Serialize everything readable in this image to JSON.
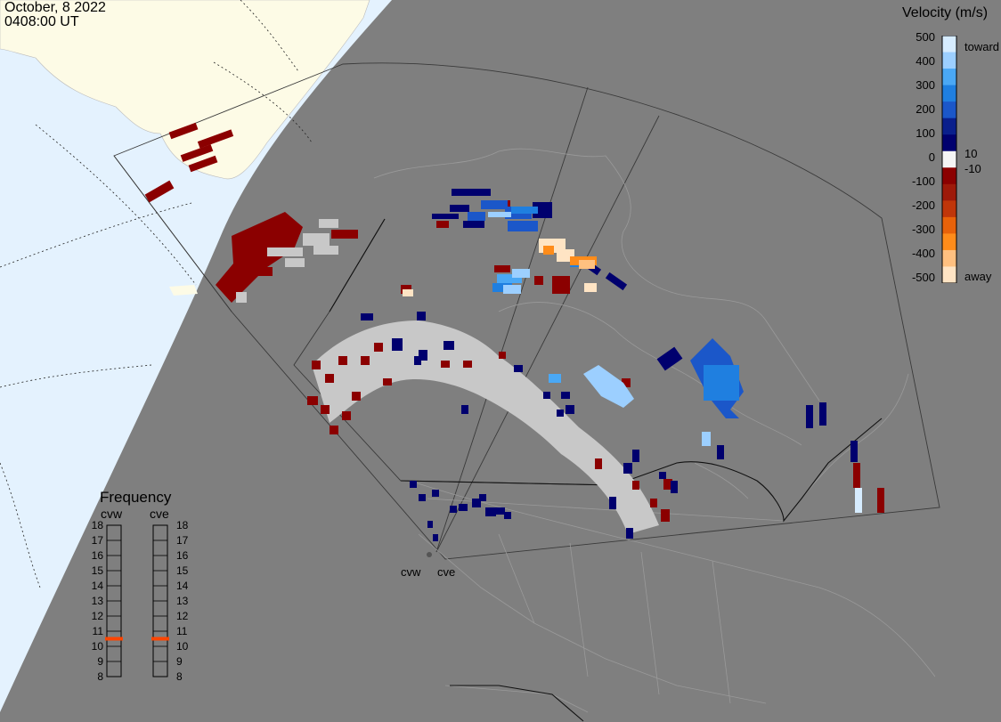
{
  "header": {
    "date": "October, 8 2022",
    "time": "0408:00 UT"
  },
  "colorbar": {
    "title": "Velocity (m/s)",
    "ticks": [
      "500",
      "400",
      "300",
      "200",
      "100",
      "0",
      "-100",
      "-200",
      "-300",
      "-400",
      "-500"
    ],
    "tick_values": [
      500,
      400,
      300,
      200,
      100,
      0,
      -100,
      -200,
      -300,
      -400,
      -500
    ],
    "inner_labels": [
      "10",
      "-10"
    ],
    "end_labels": {
      "toward": "toward",
      "away": "away"
    },
    "colors": [
      "#d6ecff",
      "#9ccfff",
      "#4aa8f5",
      "#1f7fe0",
      "#1b57c9",
      "#0a1f8c",
      "#00006e",
      "#f5f5f5",
      "#8b0000",
      "#9e1a0a",
      "#c0360a",
      "#e8620a",
      "#ff8c1a",
      "#ffc080",
      "#ffe4c4"
    ]
  },
  "frequency": {
    "title": "Frequency",
    "radars": [
      {
        "name": "cvw",
        "selected_mhz": 10.5
      },
      {
        "name": "cve",
        "selected_mhz": 10.5
      }
    ],
    "scale": [
      "18",
      "17",
      "16",
      "15",
      "14",
      "13",
      "12",
      "11",
      "10",
      "9",
      "8"
    ],
    "marker_color": "#ff4500"
  },
  "stations": [
    {
      "name": "cvw"
    },
    {
      "name": "cve"
    }
  ],
  "colors": {
    "background_sea": "#7f7f7f",
    "land_ice": "#fdfbe6",
    "sunlit_ocean": "#e4f2fe",
    "ground_scatter": "#c8c8c8"
  }
}
